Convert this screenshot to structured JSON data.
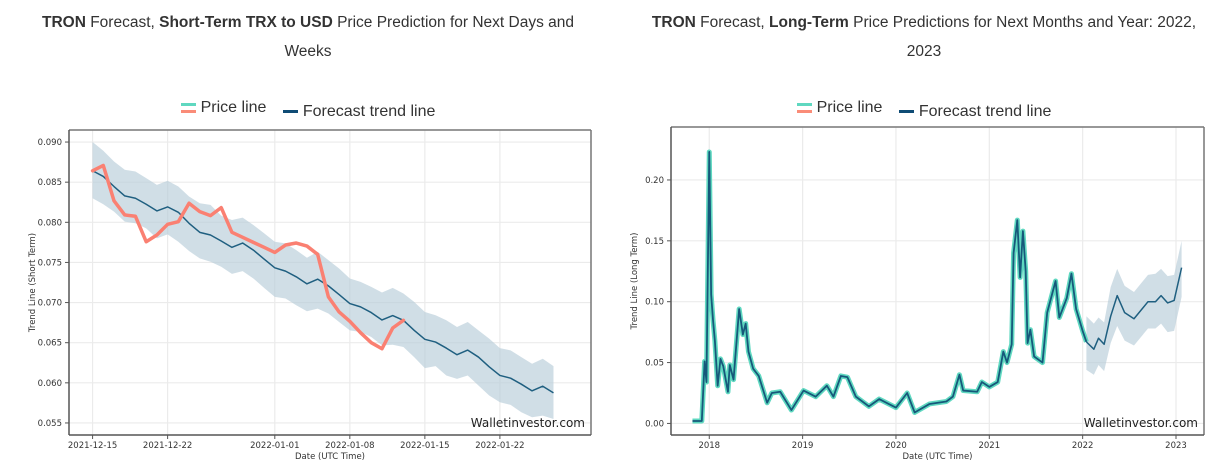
{
  "colors": {
    "price_short": "#fa8072",
    "price_long_glow": "#5fd8c0",
    "price_long_core": "#16587a",
    "trend": "#1f5f80",
    "band": "#b7ccd8",
    "grid": "#ebebeb",
    "axis": "#555555"
  },
  "legend": {
    "price_label": "Price line",
    "trend_label": "Forecast trend line"
  },
  "watermark": "Walletinvestor.com",
  "chart_data": [
    {
      "type": "line",
      "title_parts": [
        {
          "text": "TRON",
          "bold": true
        },
        {
          "text": " Forecast, ",
          "bold": false
        },
        {
          "text": "Short-Term TRX to USD",
          "bold": true
        },
        {
          "text": " Price Prediction for Next Days and Weeks",
          "bold": false
        }
      ],
      "xlabel": "Date (UTC Time)",
      "ylabel": "Trend Line (Short Term)",
      "x_unit": "days since 2021-12-15",
      "xlim": [
        -2.2,
        46.5
      ],
      "ylim": [
        0.0535,
        0.0915
      ],
      "x_ticks": [
        {
          "x": 0,
          "label": "2021-12-15"
        },
        {
          "x": 7,
          "label": "2021-12-22"
        },
        {
          "x": 17,
          "label": "2022-01-01"
        },
        {
          "x": 24,
          "label": "2022-01-08"
        },
        {
          "x": 31,
          "label": "2022-01-15"
        },
        {
          "x": 38,
          "label": "2022-01-22"
        }
      ],
      "y_ticks": [
        {
          "y": 0.055,
          "label": "0.055"
        },
        {
          "y": 0.06,
          "label": "0.060"
        },
        {
          "y": 0.065,
          "label": "0.065"
        },
        {
          "y": 0.07,
          "label": "0.070"
        },
        {
          "y": 0.075,
          "label": "0.075"
        },
        {
          "y": 0.08,
          "label": "0.080"
        },
        {
          "y": 0.085,
          "label": "0.085"
        },
        {
          "y": 0.09,
          "label": "0.090"
        }
      ],
      "grid": true,
      "legend_position": "top-center",
      "series": [
        {
          "name": "Price line",
          "x": [
            0,
            1,
            2,
            3,
            4,
            5,
            6,
            7,
            8,
            9,
            10,
            11,
            12,
            13,
            14,
            15,
            16,
            17,
            18,
            19,
            20,
            21,
            22,
            23,
            24,
            25,
            26,
            27,
            28,
            29
          ],
          "values": [
            0.08642,
            0.08708,
            0.08267,
            0.08092,
            0.08075,
            0.07758,
            0.07842,
            0.07975,
            0.08008,
            0.08238,
            0.08133,
            0.08083,
            0.08183,
            0.07875,
            0.07813,
            0.0775,
            0.07688,
            0.07625,
            0.07717,
            0.07742,
            0.07704,
            0.076,
            0.07071,
            0.06883,
            0.06767,
            0.06625,
            0.065,
            0.06425,
            0.06683,
            0.06779
          ]
        },
        {
          "name": "Forecast trend line",
          "x": [
            0,
            1,
            2,
            3,
            4,
            5,
            6,
            7,
            8,
            9,
            10,
            11,
            12,
            13,
            14,
            15,
            16,
            17,
            18,
            19,
            20,
            21,
            22,
            23,
            24,
            25,
            26,
            27,
            28,
            29,
            30,
            31,
            32,
            33,
            34,
            35,
            36,
            37,
            38,
            39,
            40,
            41,
            42,
            43
          ],
          "values": [
            0.08642,
            0.08571,
            0.08446,
            0.08329,
            0.083,
            0.08225,
            0.08142,
            0.08192,
            0.08125,
            0.07988,
            0.07875,
            0.07842,
            0.07767,
            0.07688,
            0.07742,
            0.07654,
            0.07542,
            0.07433,
            0.07392,
            0.07321,
            0.07233,
            0.07292,
            0.07208,
            0.071,
            0.06988,
            0.06946,
            0.06875,
            0.06783,
            0.06838,
            0.06779,
            0.06654,
            0.06542,
            0.06508,
            0.06433,
            0.0635,
            0.06408,
            0.06321,
            0.062,
            0.06092,
            0.06058,
            0.05983,
            0.059,
            0.05958,
            0.05875
          ],
          "upper": [
            0.09,
            0.08892,
            0.08758,
            0.08654,
            0.08633,
            0.0855,
            0.08467,
            0.08517,
            0.08446,
            0.08321,
            0.08238,
            0.08217,
            0.08083,
            0.08029,
            0.08058,
            0.07967,
            0.07863,
            0.07758,
            0.07738,
            0.07654,
            0.07558,
            0.07633,
            0.07529,
            0.07425,
            0.073,
            0.07258,
            0.07196,
            0.07125,
            0.07183,
            0.07113,
            0.07008,
            0.06883,
            0.06842,
            0.06779,
            0.06696,
            0.06758,
            0.06654,
            0.0655,
            0.06433,
            0.06404,
            0.06321,
            0.06238,
            0.063,
            0.06208
          ],
          "lower": [
            0.083,
            0.08225,
            0.08133,
            0.08008,
            0.07988,
            0.07925,
            0.078,
            0.0785,
            0.07758,
            0.07642,
            0.0755,
            0.07508,
            0.07446,
            0.07358,
            0.07392,
            0.073,
            0.07183,
            0.07071,
            0.0705,
            0.06967,
            0.06892,
            0.06925,
            0.06863,
            0.06758,
            0.06654,
            0.06633,
            0.06571,
            0.06467,
            0.06475,
            0.06446,
            0.06321,
            0.06183,
            0.06208,
            0.06092,
            0.0605,
            0.06092,
            0.05967,
            0.05842,
            0.05758,
            0.05725,
            0.05633,
            0.05571,
            0.05592,
            0.0555
          ]
        }
      ]
    },
    {
      "type": "line",
      "title_parts": [
        {
          "text": "TRON",
          "bold": true
        },
        {
          "text": " Forecast, ",
          "bold": false
        },
        {
          "text": "Long-Term",
          "bold": true
        },
        {
          "text": " Price Predictions for Next Months and Year: 2022, 2023",
          "bold": false
        }
      ],
      "xlabel": "Date (UTC Time)",
      "ylabel": "Trend Line (Long Term)",
      "x_unit": "year",
      "xlim": [
        2017.59,
        2023.3
      ],
      "ylim": [
        -0.0095,
        0.2435
      ],
      "x_ticks": [
        {
          "x": 2018,
          "label": "2018"
        },
        {
          "x": 2019,
          "label": "2019"
        },
        {
          "x": 2020,
          "label": "2020"
        },
        {
          "x": 2021,
          "label": "2021"
        },
        {
          "x": 2022,
          "label": "2022"
        },
        {
          "x": 2023,
          "label": "2023"
        }
      ],
      "y_ticks": [
        {
          "y": 0.0,
          "label": "0.00"
        },
        {
          "y": 0.05,
          "label": "0.05"
        },
        {
          "y": 0.1,
          "label": "0.10"
        },
        {
          "y": 0.15,
          "label": "0.15"
        },
        {
          "y": 0.2,
          "label": "0.20"
        }
      ],
      "grid": true,
      "legend_position": "top-center",
      "series": [
        {
          "name": "Price line",
          "x": [
            2017.82,
            2017.92,
            2017.95,
            2017.97,
            2018.0,
            2018.02,
            2018.04,
            2018.06,
            2018.09,
            2018.12,
            2018.15,
            2018.2,
            2018.22,
            2018.26,
            2018.32,
            2018.36,
            2018.39,
            2018.42,
            2018.47,
            2018.53,
            2018.62,
            2018.67,
            2018.76,
            2018.88,
            2019.01,
            2019.14,
            2019.26,
            2019.33,
            2019.41,
            2019.48,
            2019.57,
            2019.71,
            2019.82,
            2020.0,
            2020.12,
            2020.2,
            2020.36,
            2020.54,
            2020.61,
            2020.68,
            2020.72,
            2020.87,
            2020.92,
            2021.0,
            2021.09,
            2021.15,
            2021.19,
            2021.24,
            2021.26,
            2021.3,
            2021.33,
            2021.36,
            2021.39,
            2021.41,
            2021.44,
            2021.48,
            2021.57,
            2021.62,
            2021.71,
            2021.75,
            2021.83,
            2021.88,
            2021.93,
            2022.0,
            2022.04
          ],
          "values": [
            0.002,
            0.002,
            0.051,
            0.034,
            0.223,
            0.106,
            0.085,
            0.068,
            0.031,
            0.053,
            0.047,
            0.026,
            0.048,
            0.036,
            0.094,
            0.073,
            0.082,
            0.059,
            0.045,
            0.039,
            0.017,
            0.025,
            0.026,
            0.011,
            0.027,
            0.022,
            0.031,
            0.022,
            0.039,
            0.038,
            0.022,
            0.014,
            0.02,
            0.013,
            0.025,
            0.009,
            0.016,
            0.018,
            0.022,
            0.04,
            0.027,
            0.026,
            0.034,
            0.03,
            0.034,
            0.059,
            0.05,
            0.065,
            0.14,
            0.167,
            0.12,
            0.158,
            0.125,
            0.066,
            0.077,
            0.055,
            0.05,
            0.091,
            0.117,
            0.087,
            0.103,
            0.123,
            0.094,
            0.076,
            0.067
          ]
        },
        {
          "name": "Forecast trend line",
          "x": [
            2022.04,
            2022.12,
            2022.17,
            2022.23,
            2022.3,
            2022.37,
            2022.45,
            2022.55,
            2022.7,
            2022.78,
            2022.84,
            2022.91,
            2022.98,
            2023.06
          ],
          "values": [
            0.067,
            0.061,
            0.07,
            0.065,
            0.088,
            0.105,
            0.091,
            0.086,
            0.1,
            0.1,
            0.105,
            0.099,
            0.101,
            0.128
          ],
          "upper": [
            0.088,
            0.082,
            0.087,
            0.083,
            0.112,
            0.127,
            0.113,
            0.108,
            0.122,
            0.123,
            0.127,
            0.121,
            0.122,
            0.15
          ],
          "lower": [
            0.044,
            0.04,
            0.048,
            0.043,
            0.066,
            0.08,
            0.068,
            0.064,
            0.078,
            0.078,
            0.082,
            0.075,
            0.076,
            0.104
          ]
        }
      ]
    }
  ]
}
